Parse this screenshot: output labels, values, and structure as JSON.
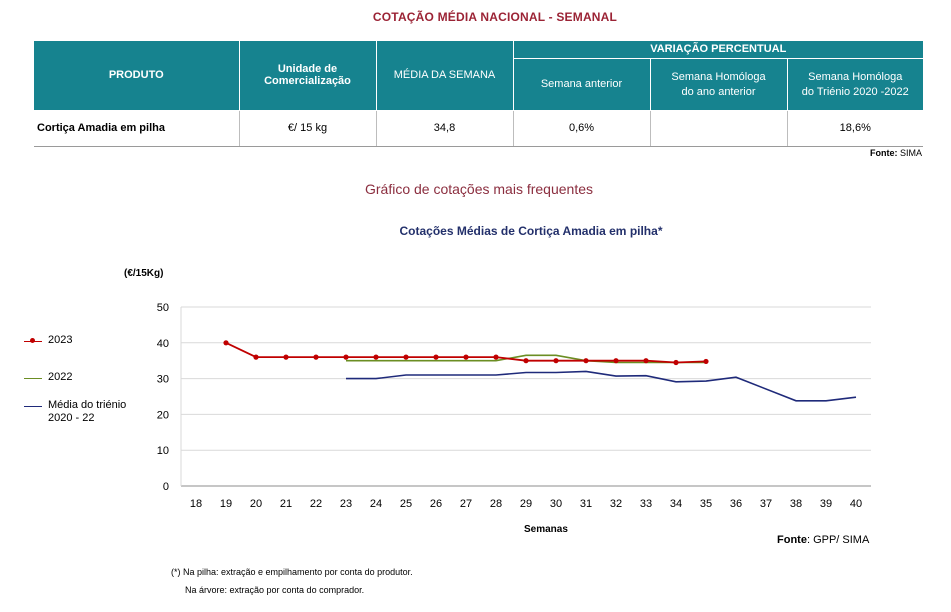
{
  "header": {
    "title": "COTAÇÃO MÉDIA NACIONAL - SEMANAL"
  },
  "table": {
    "col_produto": "PRODUTO",
    "col_unidade": "Unidade de Comercialização",
    "col_media": "MÉDIA DA SEMANA",
    "col_variacao": "VARIAÇÃO PERCENTUAL",
    "col_sem_anterior": "Semana anterior",
    "col_sem_homologa_line1": "Semana Homóloga",
    "col_sem_homologa_line2": "do ano anterior",
    "col_trienio_line1": "Semana Homóloga",
    "col_trienio_line2": "do Triénio 2020 -2022",
    "row": {
      "produto": "Cortiça Amadia em pilha",
      "unidade": "€/ 15 kg",
      "media": "34,8",
      "sem_anterior": "0,6%",
      "sem_homologa": "",
      "trienio": "18,6%"
    },
    "fonte_label": "Fonte:",
    "fonte_value": "SIMA"
  },
  "chart_heading": "Gráfico de cotações mais frequentes",
  "chart_data": {
    "type": "line",
    "title": "Cotações Médias de Cortiça Amadia em pilha*",
    "ylabel": "(€/15Kg)",
    "xlabel": "Semanas",
    "ylim": [
      0,
      50
    ],
    "yticks": [
      0,
      10,
      20,
      30,
      40,
      50
    ],
    "categories": [
      "18",
      "19",
      "20",
      "21",
      "22",
      "23",
      "24",
      "25",
      "26",
      "27",
      "28",
      "29",
      "30",
      "31",
      "32",
      "33",
      "34",
      "35",
      "36",
      "37",
      "38",
      "39",
      "40"
    ],
    "grid": true,
    "legend_position": "left",
    "series": [
      {
        "name": "2023",
        "color": "#c00000",
        "markers": true,
        "values": [
          null,
          40,
          36,
          36,
          36,
          36,
          36,
          36,
          36,
          36,
          36,
          35,
          35,
          35,
          35,
          35,
          34.5,
          34.8,
          null,
          null,
          null,
          null,
          null
        ]
      },
      {
        "name": "2022",
        "color": "#6b8e23",
        "markers": false,
        "values": [
          null,
          null,
          null,
          null,
          null,
          35,
          35,
          35,
          35,
          35,
          35,
          36.5,
          36.5,
          35,
          34.5,
          34.5,
          34.5,
          34.5,
          null,
          null,
          null,
          null,
          null
        ]
      },
      {
        "name": "Média do triénio 2020 - 22",
        "color": "#1f2a7a",
        "markers": false,
        "values": [
          null,
          null,
          null,
          null,
          null,
          30,
          30,
          31,
          31,
          31,
          31,
          31.7,
          31.7,
          32,
          30.7,
          30.8,
          29.1,
          29.3,
          30.4,
          null,
          23.8,
          23.8,
          24.8
        ]
      }
    ]
  },
  "legend": {
    "items": [
      {
        "label": "2023",
        "color": "#c00000",
        "marker": true
      },
      {
        "label": "2022",
        "color": "#6b8e23",
        "marker": false
      },
      {
        "label_line1": "Média do triénio",
        "label_line2": "2020 - 22",
        "color": "#1f2a7a",
        "marker": false
      }
    ]
  },
  "fonte2": {
    "label": "Fonte",
    "value": ": GPP/ SIMA"
  },
  "notes": {
    "note1": "(*) Na pilha: extração e empilhamento por conta do produtor.",
    "note2": "Na árvore: extração por conta do comprador."
  }
}
